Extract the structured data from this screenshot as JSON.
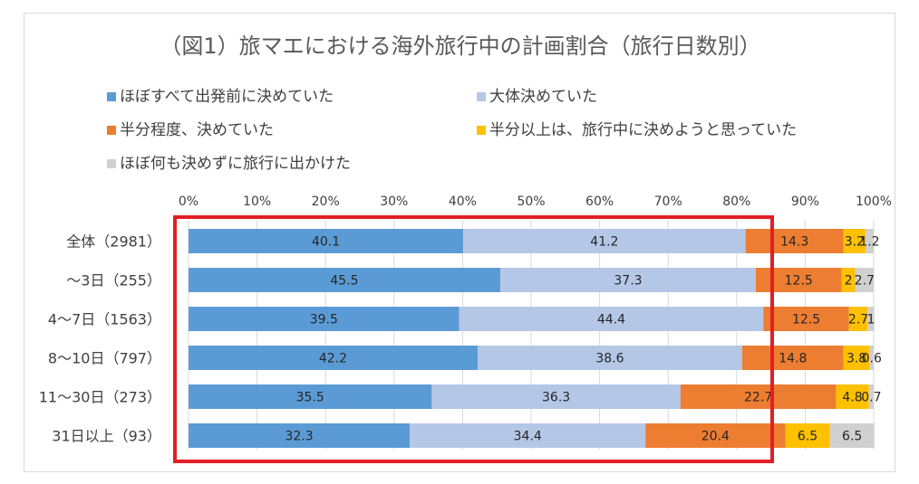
{
  "chart_data": {
    "type": "bar",
    "orientation": "horizontal",
    "stacked": true,
    "percent": true,
    "title": "（図1）旅マエにおける海外旅行中の計画割合（旅行日数別）",
    "xlim": [
      0,
      100
    ],
    "x_ticks": [
      "0%",
      "10%",
      "20%",
      "30%",
      "40%",
      "50%",
      "60%",
      "70%",
      "80%",
      "90%",
      "100%"
    ],
    "legend_position": "top",
    "categories": [
      "全体（2981）",
      "～3日（255）",
      "4～7日（1563）",
      "8～10日（797）",
      "11～30日（273）",
      "31日以上（93）"
    ],
    "series": [
      {
        "name": "ほぼすべて出発前に決めていた",
        "color": "#5b9bd5",
        "values": [
          40.1,
          45.5,
          39.5,
          42.2,
          35.5,
          32.3
        ],
        "labels": [
          "40.1",
          "45.5",
          "39.5",
          "42.2",
          "35.5",
          "32.3"
        ]
      },
      {
        "name": "大体決めていた",
        "color": "#b4c7e7",
        "values": [
          41.2,
          37.3,
          44.4,
          38.6,
          36.3,
          34.4
        ],
        "labels": [
          "41.2",
          "37.3",
          "44.4",
          "38.6",
          "36.3",
          "34.4"
        ]
      },
      {
        "name": "半分程度、決めていた",
        "color": "#ed7d31",
        "values": [
          14.3,
          12.5,
          12.5,
          14.8,
          22.7,
          20.4
        ],
        "labels": [
          "14.3",
          "12.5",
          "12.5",
          "14.8",
          "22.7",
          "20.4"
        ]
      },
      {
        "name": "半分以上は、旅行中に決めようと思っていた",
        "color": "#ffc000",
        "values": [
          3.2,
          2.0,
          2.7,
          3.8,
          4.8,
          6.5
        ],
        "labels": [
          "3.2",
          "2",
          "2.7",
          "3.8",
          "4.8",
          "6.5"
        ]
      },
      {
        "name": "ほぼ何も決めずに旅行に出かけた",
        "color": "#d0d0d0",
        "values": [
          1.2,
          2.7,
          1.0,
          0.6,
          0.7,
          6.5
        ],
        "labels": [
          "1.2",
          "2.7",
          "1",
          "0.6",
          "0.7",
          "6.5"
        ]
      }
    ],
    "highlight_box": {
      "color": "#e31e24"
    }
  }
}
